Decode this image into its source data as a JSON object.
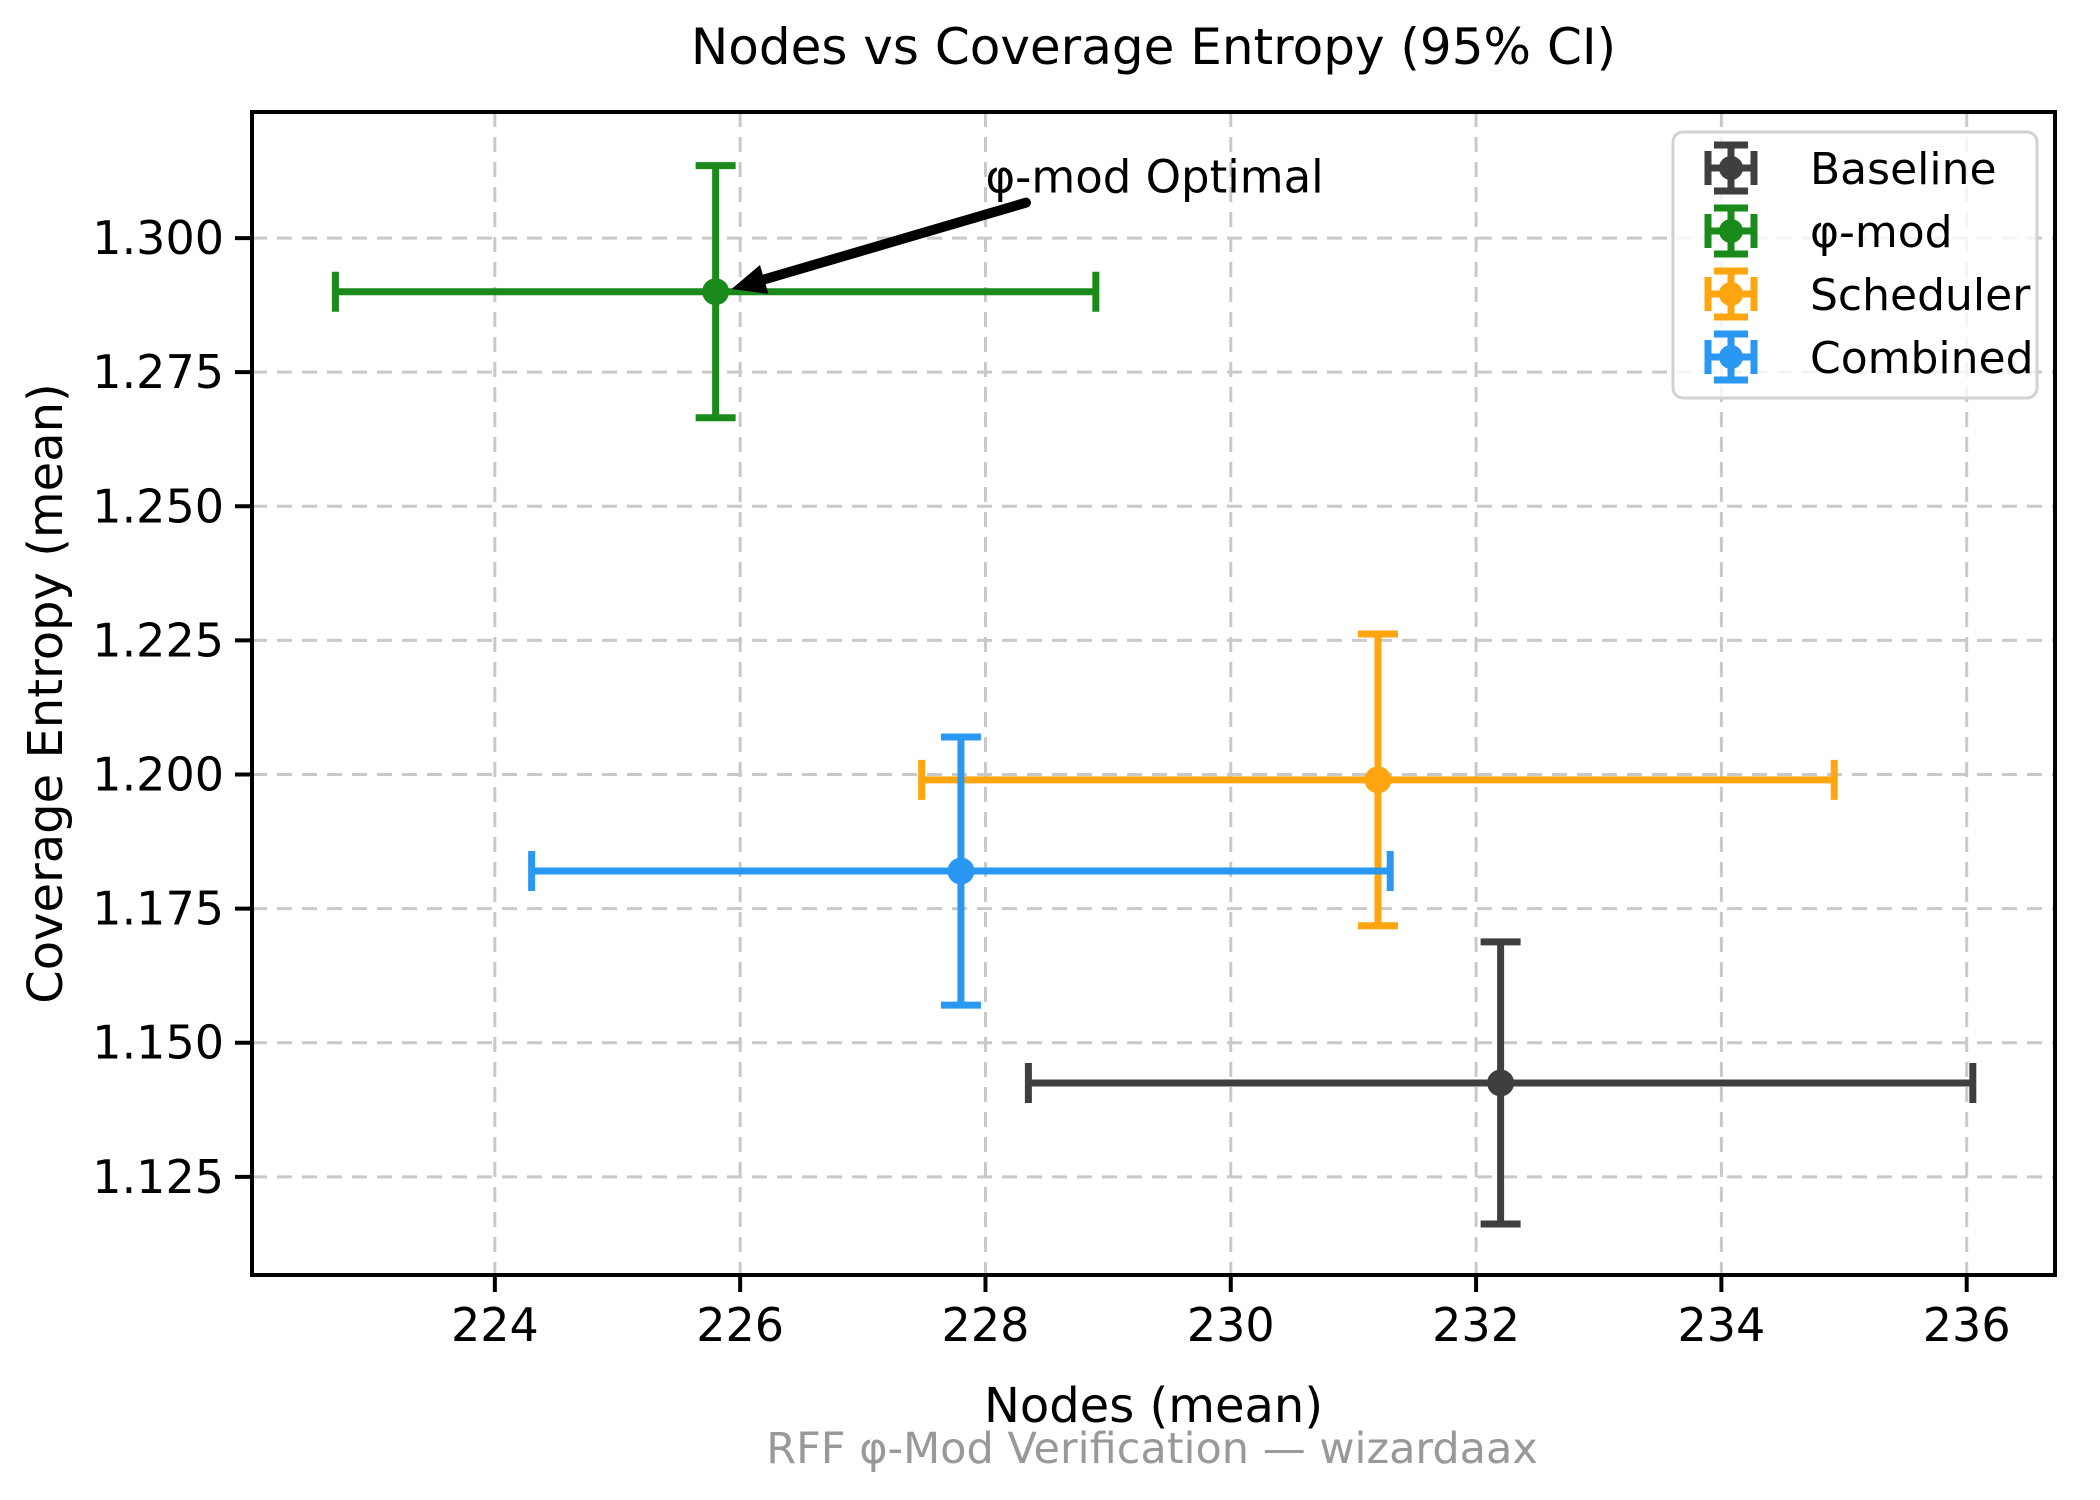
{
  "chart_data": {
    "type": "scatter",
    "title": "Nodes vs Coverage Entropy (95% CI)",
    "xlabel": "Nodes (mean)",
    "ylabel": "Coverage Entropy (mean)",
    "footer": "RFF φ-Mod Verification — wizardaax",
    "xlim": [
      222.02,
      236.72
    ],
    "ylim": [
      1.1067,
      1.3235
    ],
    "xticks": [
      224,
      226,
      228,
      230,
      232,
      234,
      236
    ],
    "xtick_labels": [
      "224",
      "226",
      "228",
      "230",
      "232",
      "234",
      "236"
    ],
    "yticks": [
      1.125,
      1.15,
      1.175,
      1.2,
      1.225,
      1.25,
      1.275,
      1.3
    ],
    "ytick_labels": [
      "1.125",
      "1.150",
      "1.175",
      "1.200",
      "1.225",
      "1.250",
      "1.275",
      "1.300"
    ],
    "grid": true,
    "grid_style": "dashed",
    "legend_position": "upper-right",
    "series": [
      {
        "name": "Baseline",
        "color": "#3f3f3f",
        "x": 232.2,
        "y": 1.1425,
        "xerr": 3.85,
        "yerr": 0.0263
      },
      {
        "name": "φ-mod",
        "color": "#1a8a1a",
        "x": 225.8,
        "y": 1.29,
        "xerr": 3.1,
        "yerr": 0.0235
      },
      {
        "name": "Scheduler",
        "color": "#ffa50f",
        "x": 231.2,
        "y": 1.199,
        "xerr": 3.72,
        "yerr": 0.0272
      },
      {
        "name": "Combined",
        "color": "#2a97f3",
        "x": 227.8,
        "y": 1.182,
        "xerr": 3.5,
        "yerr": 0.025
      }
    ],
    "annotation": {
      "text": "φ-mod Optimal",
      "text_x": 228.0,
      "text_y": 1.3085,
      "arrow_from_x": 228.33,
      "arrow_from_y": 1.3066,
      "arrow_to_x": 225.93,
      "arrow_to_y": 1.2905,
      "arrow_color": "#000000"
    }
  }
}
